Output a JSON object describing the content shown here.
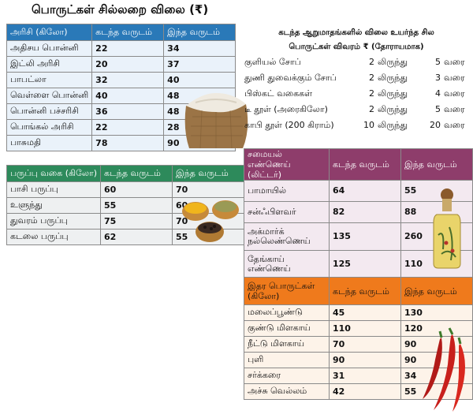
{
  "title": "பொருட்கள் சில்லறை விலை (₹)",
  "rice": {
    "headers": [
      "அரிசி (கிலோ)",
      "கடந்த வருடம்",
      "இந்த வருடம்"
    ],
    "rows": [
      [
        "அதிசய பொன்னி",
        "22",
        "34"
      ],
      [
        "இட்லி அரிசி",
        "20",
        "37"
      ],
      [
        "பாபட்லா",
        "32",
        "40"
      ],
      [
        "வெள்ளை பொன்னி",
        "40",
        "48"
      ],
      [
        "பொன்னி பச்சரிசி",
        "36",
        "48"
      ],
      [
        "பொங்கல் அரிசி",
        "22",
        "28"
      ],
      [
        "பாசுமதி",
        "78",
        "90"
      ]
    ]
  },
  "pulses": {
    "headers": [
      "பருப்பு வகை (கிலோ)",
      "கடந்த வருடம்",
      "இந்த வருடம்"
    ],
    "rows": [
      [
        "பாசி பருப்பு",
        "60",
        "70"
      ],
      [
        "உளுந்து",
        "55",
        "60"
      ],
      [
        "துவரம் பருப்பு",
        "75",
        "70"
      ],
      [
        "கடலை பருப்பு",
        "62",
        "55"
      ]
    ]
  },
  "ranges": {
    "heading_line1": "கடந்த ஆறுமாதங்களில் விலை உயர்ந்த சில",
    "heading_line2": "பொருட்கள் விவரம் ₹ (தோராயமாக)",
    "rows": [
      {
        "item": "குளியல் சோப்",
        "from": "2",
        "from_word": "லிருந்து",
        "to": "5",
        "to_word": "வரை"
      },
      {
        "item": "துணி துவைக்கும் சோப்",
        "from": "2",
        "from_word": "லிருந்து",
        "to": "3",
        "to_word": "வரை"
      },
      {
        "item": "பிஸ்கட் வகைகள்",
        "from": "2",
        "from_word": "லிருந்து",
        "to": "4",
        "to_word": "வரை"
      },
      {
        "item": "டீ தூள் (அரைகிலோ)",
        "from": "2",
        "from_word": "லிருந்து",
        "to": "5",
        "to_word": "வரை"
      },
      {
        "item": "காபி தூள் (200 கிராம்)",
        "from": "10",
        "from_word": "லிருந்து",
        "to": "20",
        "to_word": "வரை"
      }
    ]
  },
  "oil": {
    "headers": [
      "சமையல் எண்ணெய் (லிட்டர்)",
      "கடந்த வருடம்",
      "இந்த வருடம்"
    ],
    "rows": [
      [
        "பாமாயில்",
        "64",
        "55"
      ],
      [
        "சன்ஃபிளவர்",
        "82",
        "88"
      ],
      [
        "அக்மார்க் நல்லெண்ணெய்",
        "135",
        "260"
      ],
      [
        "தேங்காய் எண்ணெய்",
        "125",
        "110"
      ]
    ]
  },
  "other": {
    "headers": [
      "இதர பொருட்கள் (கிலோ)",
      "கடந்த வருடம்",
      "இந்த வருடம்"
    ],
    "rows": [
      [
        "மலைப்பூண்டு",
        "45",
        "130"
      ],
      [
        "குண்டு மிளகாய்",
        "110",
        "120"
      ],
      [
        "நீட்டு மிளகாய்",
        "70",
        "90"
      ],
      [
        "புளி",
        "90",
        "90"
      ],
      [
        "சர்க்கரை",
        "31",
        "34"
      ],
      [
        "அச்சு வெல்லம்",
        "42",
        "55"
      ]
    ]
  },
  "colors": {
    "rice_header": "#2a79b8",
    "pulses_header": "#2d8a5b",
    "oil_header": "#8e3d6b",
    "other_header": "#ef7a1c"
  },
  "illustrations": [
    "rice-sack",
    "spice-bowls",
    "oil-bottle",
    "red-chillies"
  ]
}
